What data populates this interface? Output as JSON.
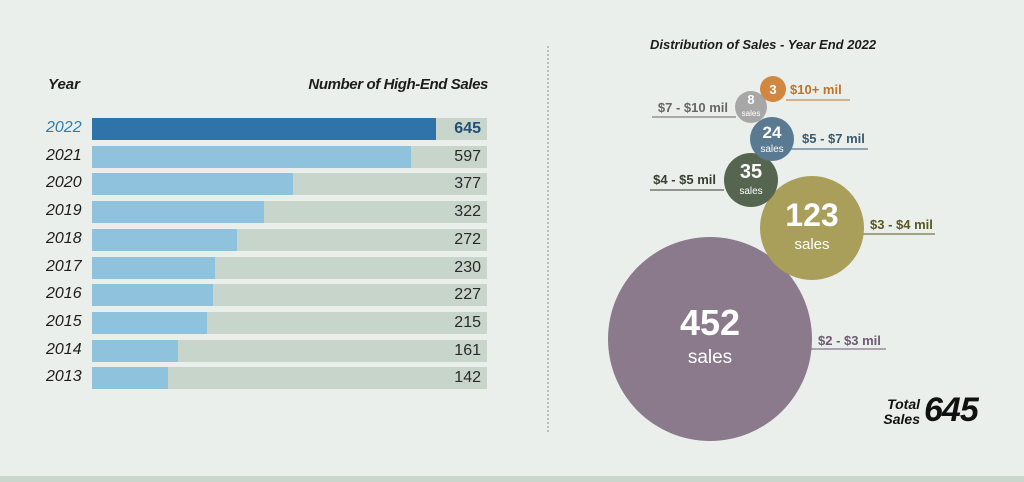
{
  "bar_chart": {
    "year_header": "Year",
    "value_header": "Number of High-End Sales",
    "rows": [
      {
        "year": "2022",
        "value": 645,
        "label": "645",
        "highlight": true
      },
      {
        "year": "2021",
        "value": 597,
        "label": "597"
      },
      {
        "year": "2020",
        "value": 377,
        "label": "377"
      },
      {
        "year": "2019",
        "value": 322,
        "label": "322"
      },
      {
        "year": "2018",
        "value": 272,
        "label": "272"
      },
      {
        "year": "2017",
        "value": 230,
        "label": "230"
      },
      {
        "year": "2016",
        "value": 227,
        "label": "227"
      },
      {
        "year": "2015",
        "value": 215,
        "label": "215"
      },
      {
        "year": "2014",
        "value": 161,
        "label": "161"
      },
      {
        "year": "2013",
        "value": 142,
        "label": "142"
      }
    ]
  },
  "distribution": {
    "title": "Distribution of Sales - Year End 2022",
    "total_label": "Total Sales",
    "total_value": "645"
  },
  "chart_data": [
    {
      "type": "bar",
      "orientation": "horizontal",
      "xlabel": "Number of High-End Sales",
      "ylabel": "Year",
      "categories": [
        "2022",
        "2021",
        "2020",
        "2019",
        "2018",
        "2017",
        "2016",
        "2015",
        "2014",
        "2013"
      ],
      "values": [
        645,
        597,
        377,
        322,
        272,
        230,
        227,
        215,
        161,
        142
      ],
      "xlim": [
        0,
        740
      ],
      "colors": {
        "highlight": "#2e74a8",
        "bar": "#8fc2dc",
        "track": "#c8d5cb"
      }
    },
    {
      "type": "bubble",
      "title": "Distribution of Sales - Year End 2022",
      "unit": "sales",
      "series": [
        {
          "name": "$2 - $3 mil",
          "value": 452,
          "color": "#8a7a8c",
          "label_color": "#6d5a72"
        },
        {
          "name": "$3 - $4 mil",
          "value": 123,
          "color": "#a99f5a",
          "label_color": "#5c5620"
        },
        {
          "name": "$4 - $5 mil",
          "value": 35,
          "color": "#56654f",
          "label_color": "#34412f"
        },
        {
          "name": "$5 - $7 mil",
          "value": 24,
          "color": "#5a7a92",
          "label_color": "#3a5a70"
        },
        {
          "name": "$7 - $10 mil",
          "value": 8,
          "color": "#a7a7a7",
          "label_color": "#666666"
        },
        {
          "name": "$10+ mil",
          "value": 3,
          "color": "#d1873f",
          "label_color": "#c0722a"
        }
      ],
      "total": 645
    }
  ]
}
